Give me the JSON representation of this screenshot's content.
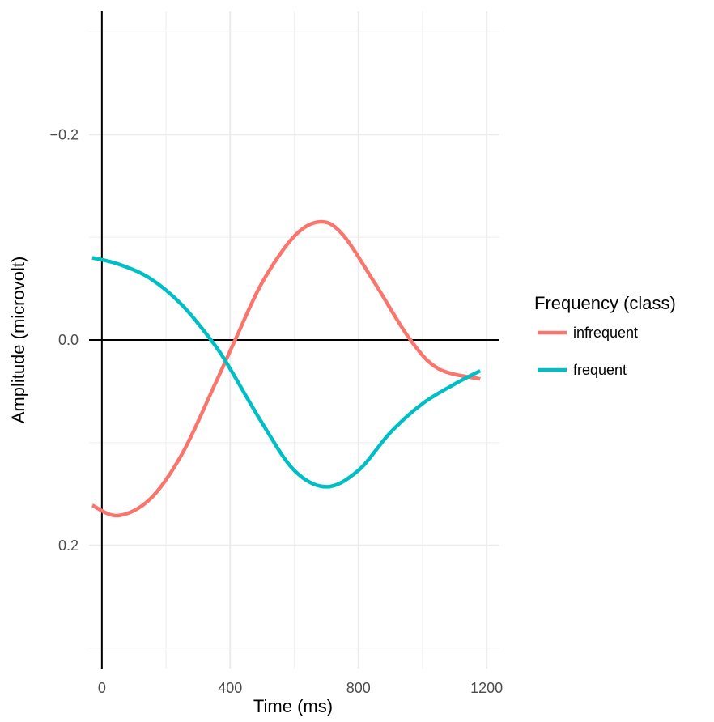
{
  "chart_data": {
    "type": "line",
    "xlabel": "Time (ms)",
    "ylabel": "Amplitude (microvolt)",
    "xlim": [
      -40,
      1240
    ],
    "ylim": [
      -0.32,
      0.32
    ],
    "y_reversed": true,
    "x_ticks": [
      0,
      400,
      800,
      1200
    ],
    "x_tick_labels": [
      "0",
      "400",
      "800",
      "1200"
    ],
    "y_ticks": [
      -0.2,
      0.0,
      0.2
    ],
    "y_tick_labels": [
      "−0.2",
      "0.0",
      "0.2"
    ],
    "x_minor_gridlines": [
      200,
      600,
      1000
    ],
    "y_minor_gridlines": [
      -0.3,
      -0.1,
      0.1,
      0.3
    ],
    "grid": true,
    "reference_lines": {
      "x": 0,
      "y": 0
    },
    "legend": {
      "title": "Frequency (class)",
      "position": "right"
    },
    "series": [
      {
        "name": "infrequent",
        "color": "#F8766D",
        "x": [
          -30,
          50,
          150,
          250,
          350,
          420,
          500,
          600,
          680,
          750,
          850,
          960,
          1050,
          1180
        ],
        "y": [
          0.161,
          0.171,
          0.155,
          0.111,
          0.045,
          -0.003,
          -0.056,
          -0.101,
          -0.115,
          -0.103,
          -0.056,
          -0.001,
          0.028,
          0.038
        ]
      },
      {
        "name": "frequent",
        "color": "#00BFC4",
        "x": [
          -30,
          50,
          150,
          250,
          350,
          400,
          500,
          600,
          700,
          800,
          900,
          1000,
          1100,
          1180
        ],
        "y": [
          -0.08,
          -0.074,
          -0.06,
          -0.034,
          0.004,
          0.028,
          0.081,
          0.127,
          0.143,
          0.127,
          0.09,
          0.062,
          0.043,
          0.03
        ]
      }
    ]
  }
}
